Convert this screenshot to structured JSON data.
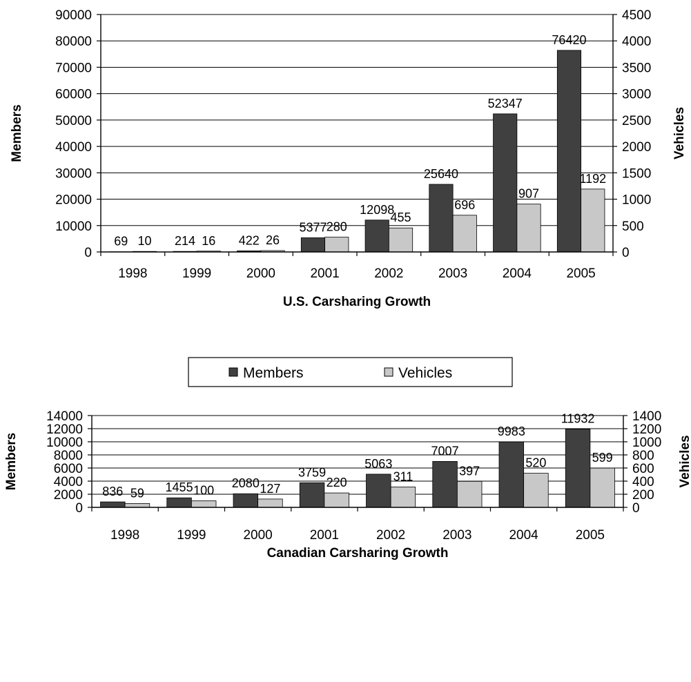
{
  "colors": {
    "members": "#404040",
    "vehicles": "#c8c8c8",
    "axis": "#000000"
  },
  "legend": {
    "members_label": "Members",
    "vehicles_label": "Vehicles"
  },
  "chart_data": [
    {
      "type": "bar",
      "title": "U.S. Carsharing Growth",
      "categories": [
        "1998",
        "1999",
        "2000",
        "2001",
        "2002",
        "2003",
        "2004",
        "2005"
      ],
      "series": [
        {
          "name": "Members",
          "axis": "left",
          "values": [
            69,
            214,
            422,
            5377,
            12098,
            25640,
            52347,
            76420
          ],
          "labels": [
            "69",
            "214",
            "422",
            "5377",
            "12098",
            "25640",
            "52347",
            "76420"
          ]
        },
        {
          "name": "Vehicles",
          "axis": "right",
          "values": [
            10,
            16,
            26,
            280,
            455,
            696,
            907,
            1192
          ],
          "labels": [
            "10",
            "16",
            "26",
            "280",
            "455",
            "696",
            "907",
            "1192"
          ]
        }
      ],
      "ylabel": "Members",
      "y2label": "Vehicles",
      "ylim": [
        0,
        90000
      ],
      "y2lim": [
        0,
        4500
      ],
      "yticks": [
        "0",
        "10000",
        "20000",
        "30000",
        "40000",
        "50000",
        "60000",
        "70000",
        "80000",
        "90000"
      ],
      "y2ticks": [
        "0",
        "500",
        "1000",
        "1500",
        "2000",
        "2500",
        "3000",
        "3500",
        "4000",
        "4500"
      ],
      "grid": true
    },
    {
      "type": "bar",
      "title": "Canadian Carsharing Growth",
      "categories": [
        "1998",
        "1999",
        "2000",
        "2001",
        "2002",
        "2003",
        "2004",
        "2005"
      ],
      "series": [
        {
          "name": "Members",
          "axis": "left",
          "values": [
            836,
            1455,
            2080,
            3759,
            5063,
            7007,
            9983,
            11932
          ],
          "labels": [
            "836",
            "1455",
            "2080",
            "3759",
            "5063",
            "7007",
            "9983",
            "11932"
          ]
        },
        {
          "name": "Vehicles",
          "axis": "right",
          "values": [
            59,
            100,
            127,
            220,
            311,
            397,
            520,
            599
          ],
          "labels": [
            "59",
            "100",
            "127",
            "220",
            "311",
            "397",
            "520",
            "599"
          ]
        }
      ],
      "ylabel": "Members",
      "y2label": "Vehicles",
      "ylim": [
        0,
        14000
      ],
      "y2lim": [
        0,
        1400
      ],
      "yticks": [
        "0",
        "2000",
        "4000",
        "6000",
        "8000",
        "10000",
        "12000",
        "14000"
      ],
      "y2ticks": [
        "0",
        "200",
        "400",
        "600",
        "800",
        "1000",
        "1200",
        "1400"
      ],
      "grid": true
    }
  ]
}
